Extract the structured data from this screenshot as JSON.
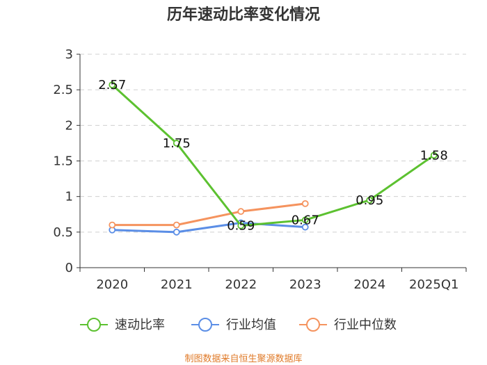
{
  "chart_data": {
    "type": "line",
    "title": "历年速动比率变化情况",
    "categories": [
      "2020",
      "2021",
      "2022",
      "2023",
      "2024",
      "2025Q1"
    ],
    "ylim": [
      0,
      3
    ],
    "yticks": [
      "0",
      "0.5",
      "1",
      "1.5",
      "2",
      "2.5",
      "3"
    ],
    "grid": true,
    "legend_position": "bottom",
    "series": [
      {
        "name": "速动比率",
        "color": "#5cc130",
        "values": [
          2.57,
          1.75,
          0.59,
          0.67,
          0.95,
          1.58
        ],
        "labels": [
          "2.57",
          "1.75",
          "0.59",
          "0.67",
          "0.95",
          "1.58"
        ]
      },
      {
        "name": "行业均值",
        "color": "#5b8ee6",
        "values": [
          0.53,
          0.5,
          0.63,
          0.57,
          null,
          null
        ]
      },
      {
        "name": "行业中位数",
        "color": "#f5935e",
        "values": [
          0.6,
          0.6,
          0.79,
          0.9,
          null,
          null
        ]
      }
    ],
    "source": "制图数据来自恒生聚源数据库"
  }
}
